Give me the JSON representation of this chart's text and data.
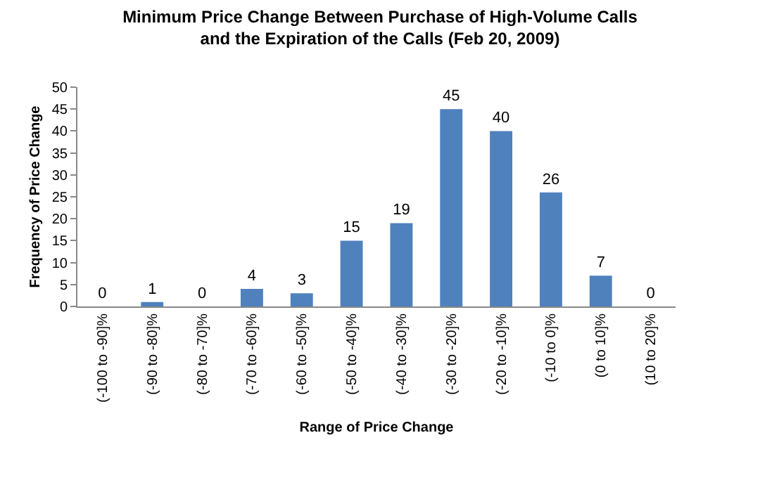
{
  "chart_data": {
    "type": "bar",
    "title": "Minimum Price Change Between Purchase of High-Volume Calls\nand the Expiration of the Calls (Feb 20, 2009)",
    "xlabel": "Range of Price Change",
    "ylabel": "Frequency of Price Change",
    "categories": [
      "(-100 to -90]%",
      "(-90 to -80]%",
      "(-80 to -70]%",
      "(-70 to -60]%",
      "(-60 to -50]%",
      "(-50 to -40]%",
      "(-40 to -30]%",
      "(-30 to -20]%",
      "(-20 to -10]%",
      "(-10 to 0]%",
      "(0 to 10]%",
      "(10 to 20]%"
    ],
    "values": [
      0,
      1,
      0,
      4,
      3,
      15,
      19,
      45,
      40,
      26,
      7,
      0
    ],
    "color": "#4f81bd",
    "ylim": [
      0,
      50
    ],
    "yticks": [
      0,
      5,
      10,
      15,
      20,
      25,
      30,
      35,
      40,
      45,
      50
    ],
    "data_labels": true,
    "legend": false
  }
}
